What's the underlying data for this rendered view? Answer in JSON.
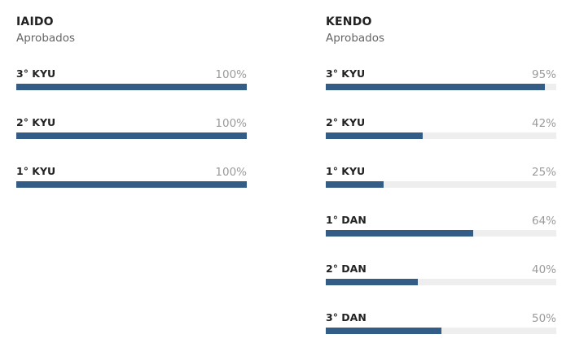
{
  "accent_color": "#335d87",
  "track_color": "#eeeeee",
  "panels": [
    {
      "title": "IAIDO",
      "subtitle": "Aprobados",
      "skills": [
        {
          "label": "3° KYU",
          "value_text": "100%",
          "percent": 100
        },
        {
          "label": "2° KYU",
          "value_text": "100%",
          "percent": 100
        },
        {
          "label": "1° KYU",
          "value_text": "100%",
          "percent": 100
        }
      ]
    },
    {
      "title": "KENDO",
      "subtitle": "Aprobados",
      "skills": [
        {
          "label": "3° KYU",
          "value_text": "95%",
          "percent": 95
        },
        {
          "label": "2° KYU",
          "value_text": "42%",
          "percent": 42
        },
        {
          "label": "1° KYU",
          "value_text": "25%",
          "percent": 25
        },
        {
          "label": "1° DAN",
          "value_text": "64%",
          "percent": 64
        },
        {
          "label": "2° DAN",
          "value_text": "40%",
          "percent": 40
        },
        {
          "label": "3° DAN",
          "value_text": "50%",
          "percent": 50
        }
      ]
    }
  ]
}
